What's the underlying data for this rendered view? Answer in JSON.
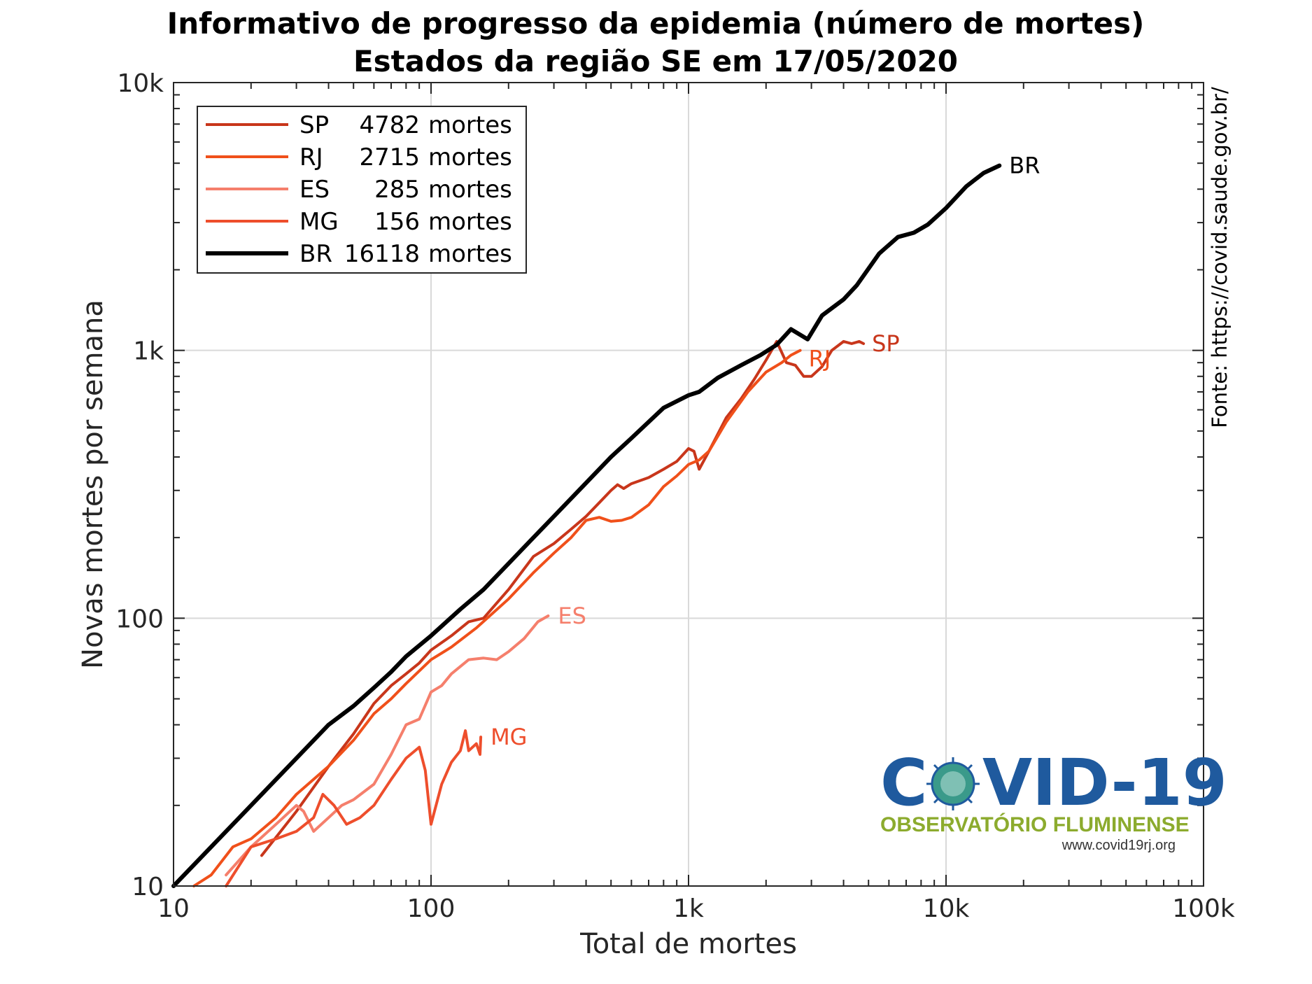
{
  "chart_data": {
    "type": "line",
    "title": "Informativo de progresso da epidemia (número de mortes)",
    "subtitle": "Estados da região SE em 17/05/2020",
    "xlabel": "Total de mortes",
    "ylabel": "Novas mortes por semana",
    "xscale": "log",
    "yscale": "log",
    "xlim": [
      10,
      100000
    ],
    "ylim": [
      10,
      10000
    ],
    "x_ticks": [
      {
        "value": 10,
        "label": "10"
      },
      {
        "value": 100,
        "label": "100"
      },
      {
        "value": 1000,
        "label": "1k"
      },
      {
        "value": 10000,
        "label": "10k"
      },
      {
        "value": 100000,
        "label": "100k"
      }
    ],
    "y_ticks": [
      {
        "value": 10,
        "label": "10"
      },
      {
        "value": 100,
        "label": "100"
      },
      {
        "value": 1000,
        "label": "1k"
      },
      {
        "value": 10000,
        "label": "10k"
      }
    ],
    "grid": true,
    "legend_position": "top-left",
    "source": "Fonte: https://covid.saude.gov.br/",
    "series": [
      {
        "name": "SP",
        "total": "4782",
        "unit": "mortes",
        "color": "#c8361b",
        "label": "SP",
        "points": [
          [
            22,
            13
          ],
          [
            30,
            19
          ],
          [
            40,
            28
          ],
          [
            50,
            37
          ],
          [
            60,
            48
          ],
          [
            70,
            56
          ],
          [
            80,
            62
          ],
          [
            90,
            68
          ],
          [
            100,
            76
          ],
          [
            120,
            86
          ],
          [
            140,
            97
          ],
          [
            160,
            100
          ],
          [
            200,
            128
          ],
          [
            250,
            170
          ],
          [
            300,
            190
          ],
          [
            350,
            215
          ],
          [
            400,
            240
          ],
          [
            450,
            270
          ],
          [
            500,
            300
          ],
          [
            530,
            315
          ],
          [
            560,
            305
          ],
          [
            600,
            318
          ],
          [
            700,
            335
          ],
          [
            800,
            360
          ],
          [
            900,
            385
          ],
          [
            1000,
            430
          ],
          [
            1050,
            420
          ],
          [
            1100,
            360
          ],
          [
            1200,
            420
          ],
          [
            1400,
            560
          ],
          [
            1600,
            660
          ],
          [
            1800,
            780
          ],
          [
            2000,
            920
          ],
          [
            2200,
            1080
          ],
          [
            2400,
            900
          ],
          [
            2600,
            880
          ],
          [
            2800,
            800
          ],
          [
            3000,
            800
          ],
          [
            3300,
            870
          ],
          [
            3600,
            1000
          ],
          [
            4000,
            1080
          ],
          [
            4300,
            1060
          ],
          [
            4600,
            1080
          ],
          [
            4782,
            1060
          ]
        ]
      },
      {
        "name": "RJ",
        "total": "2715",
        "unit": "mortes",
        "color": "#f0501a",
        "label": "RJ",
        "points": [
          [
            12,
            10
          ],
          [
            14,
            11
          ],
          [
            17,
            14
          ],
          [
            20,
            15
          ],
          [
            25,
            18
          ],
          [
            30,
            22
          ],
          [
            40,
            28
          ],
          [
            50,
            35
          ],
          [
            60,
            44
          ],
          [
            70,
            50
          ],
          [
            80,
            57
          ],
          [
            100,
            70
          ],
          [
            120,
            78
          ],
          [
            150,
            92
          ],
          [
            200,
            118
          ],
          [
            250,
            148
          ],
          [
            300,
            175
          ],
          [
            350,
            200
          ],
          [
            400,
            232
          ],
          [
            450,
            238
          ],
          [
            500,
            230
          ],
          [
            550,
            232
          ],
          [
            600,
            238
          ],
          [
            700,
            265
          ],
          [
            800,
            310
          ],
          [
            900,
            340
          ],
          [
            1000,
            375
          ],
          [
            1100,
            390
          ],
          [
            1200,
            420
          ],
          [
            1400,
            540
          ],
          [
            1700,
            700
          ],
          [
            2000,
            830
          ],
          [
            2300,
            900
          ],
          [
            2500,
            960
          ],
          [
            2715,
            1000
          ]
        ]
      },
      {
        "name": "ES",
        "total": "285",
        "unit": "mortes",
        "color": "#f57f6c",
        "label": "ES",
        "points": [
          [
            16,
            11
          ],
          [
            20,
            14
          ],
          [
            25,
            17
          ],
          [
            30,
            20
          ],
          [
            32,
            19
          ],
          [
            35,
            16
          ],
          [
            40,
            18
          ],
          [
            45,
            20
          ],
          [
            50,
            21
          ],
          [
            60,
            24
          ],
          [
            70,
            31
          ],
          [
            80,
            40
          ],
          [
            90,
            42
          ],
          [
            100,
            53
          ],
          [
            110,
            56
          ],
          [
            120,
            62
          ],
          [
            140,
            70
          ],
          [
            160,
            71
          ],
          [
            180,
            70
          ],
          [
            200,
            75
          ],
          [
            230,
            84
          ],
          [
            260,
            97
          ],
          [
            285,
            102
          ]
        ]
      },
      {
        "name": "MG",
        "total": "156",
        "unit": "mortes",
        "color": "#ee4e2c",
        "label": "MG",
        "points": [
          [
            16,
            10
          ],
          [
            20,
            14
          ],
          [
            25,
            15
          ],
          [
            30,
            16
          ],
          [
            35,
            18
          ],
          [
            38,
            22
          ],
          [
            42,
            20
          ],
          [
            47,
            17
          ],
          [
            53,
            18
          ],
          [
            60,
            20
          ],
          [
            70,
            25
          ],
          [
            80,
            30
          ],
          [
            90,
            33
          ],
          [
            95,
            27
          ],
          [
            100,
            17
          ],
          [
            110,
            24
          ],
          [
            120,
            29
          ],
          [
            130,
            32
          ],
          [
            136,
            38
          ],
          [
            140,
            32
          ],
          [
            150,
            34
          ],
          [
            155,
            31
          ],
          [
            156,
            36
          ]
        ]
      },
      {
        "name": "BR",
        "total": "16118",
        "unit": "mortes",
        "color": "#000000",
        "label": "BR",
        "points": [
          [
            10,
            10
          ],
          [
            20,
            20
          ],
          [
            30,
            30
          ],
          [
            40,
            40
          ],
          [
            50,
            47
          ],
          [
            60,
            55
          ],
          [
            70,
            63
          ],
          [
            80,
            72
          ],
          [
            100,
            86
          ],
          [
            130,
            108
          ],
          [
            160,
            128
          ],
          [
            200,
            160
          ],
          [
            250,
            200
          ],
          [
            300,
            240
          ],
          [
            400,
            320
          ],
          [
            500,
            400
          ],
          [
            600,
            470
          ],
          [
            800,
            610
          ],
          [
            1000,
            680
          ],
          [
            1100,
            700
          ],
          [
            1300,
            790
          ],
          [
            1600,
            880
          ],
          [
            1900,
            960
          ],
          [
            2200,
            1050
          ],
          [
            2500,
            1200
          ],
          [
            2900,
            1100
          ],
          [
            3300,
            1350
          ],
          [
            4000,
            1550
          ],
          [
            4500,
            1750
          ],
          [
            5500,
            2300
          ],
          [
            6500,
            2650
          ],
          [
            7500,
            2750
          ],
          [
            8500,
            2950
          ],
          [
            10000,
            3400
          ],
          [
            12000,
            4100
          ],
          [
            14000,
            4600
          ],
          [
            16118,
            4900
          ]
        ]
      }
    ]
  },
  "logo": {
    "title": "COVID-19",
    "subtitle": "OBSERVATÓRIO FLUMINENSE",
    "url": "www.covid19rj.org",
    "primary_color": "#1f5a9e",
    "secondary_color": "#8cab2e"
  }
}
